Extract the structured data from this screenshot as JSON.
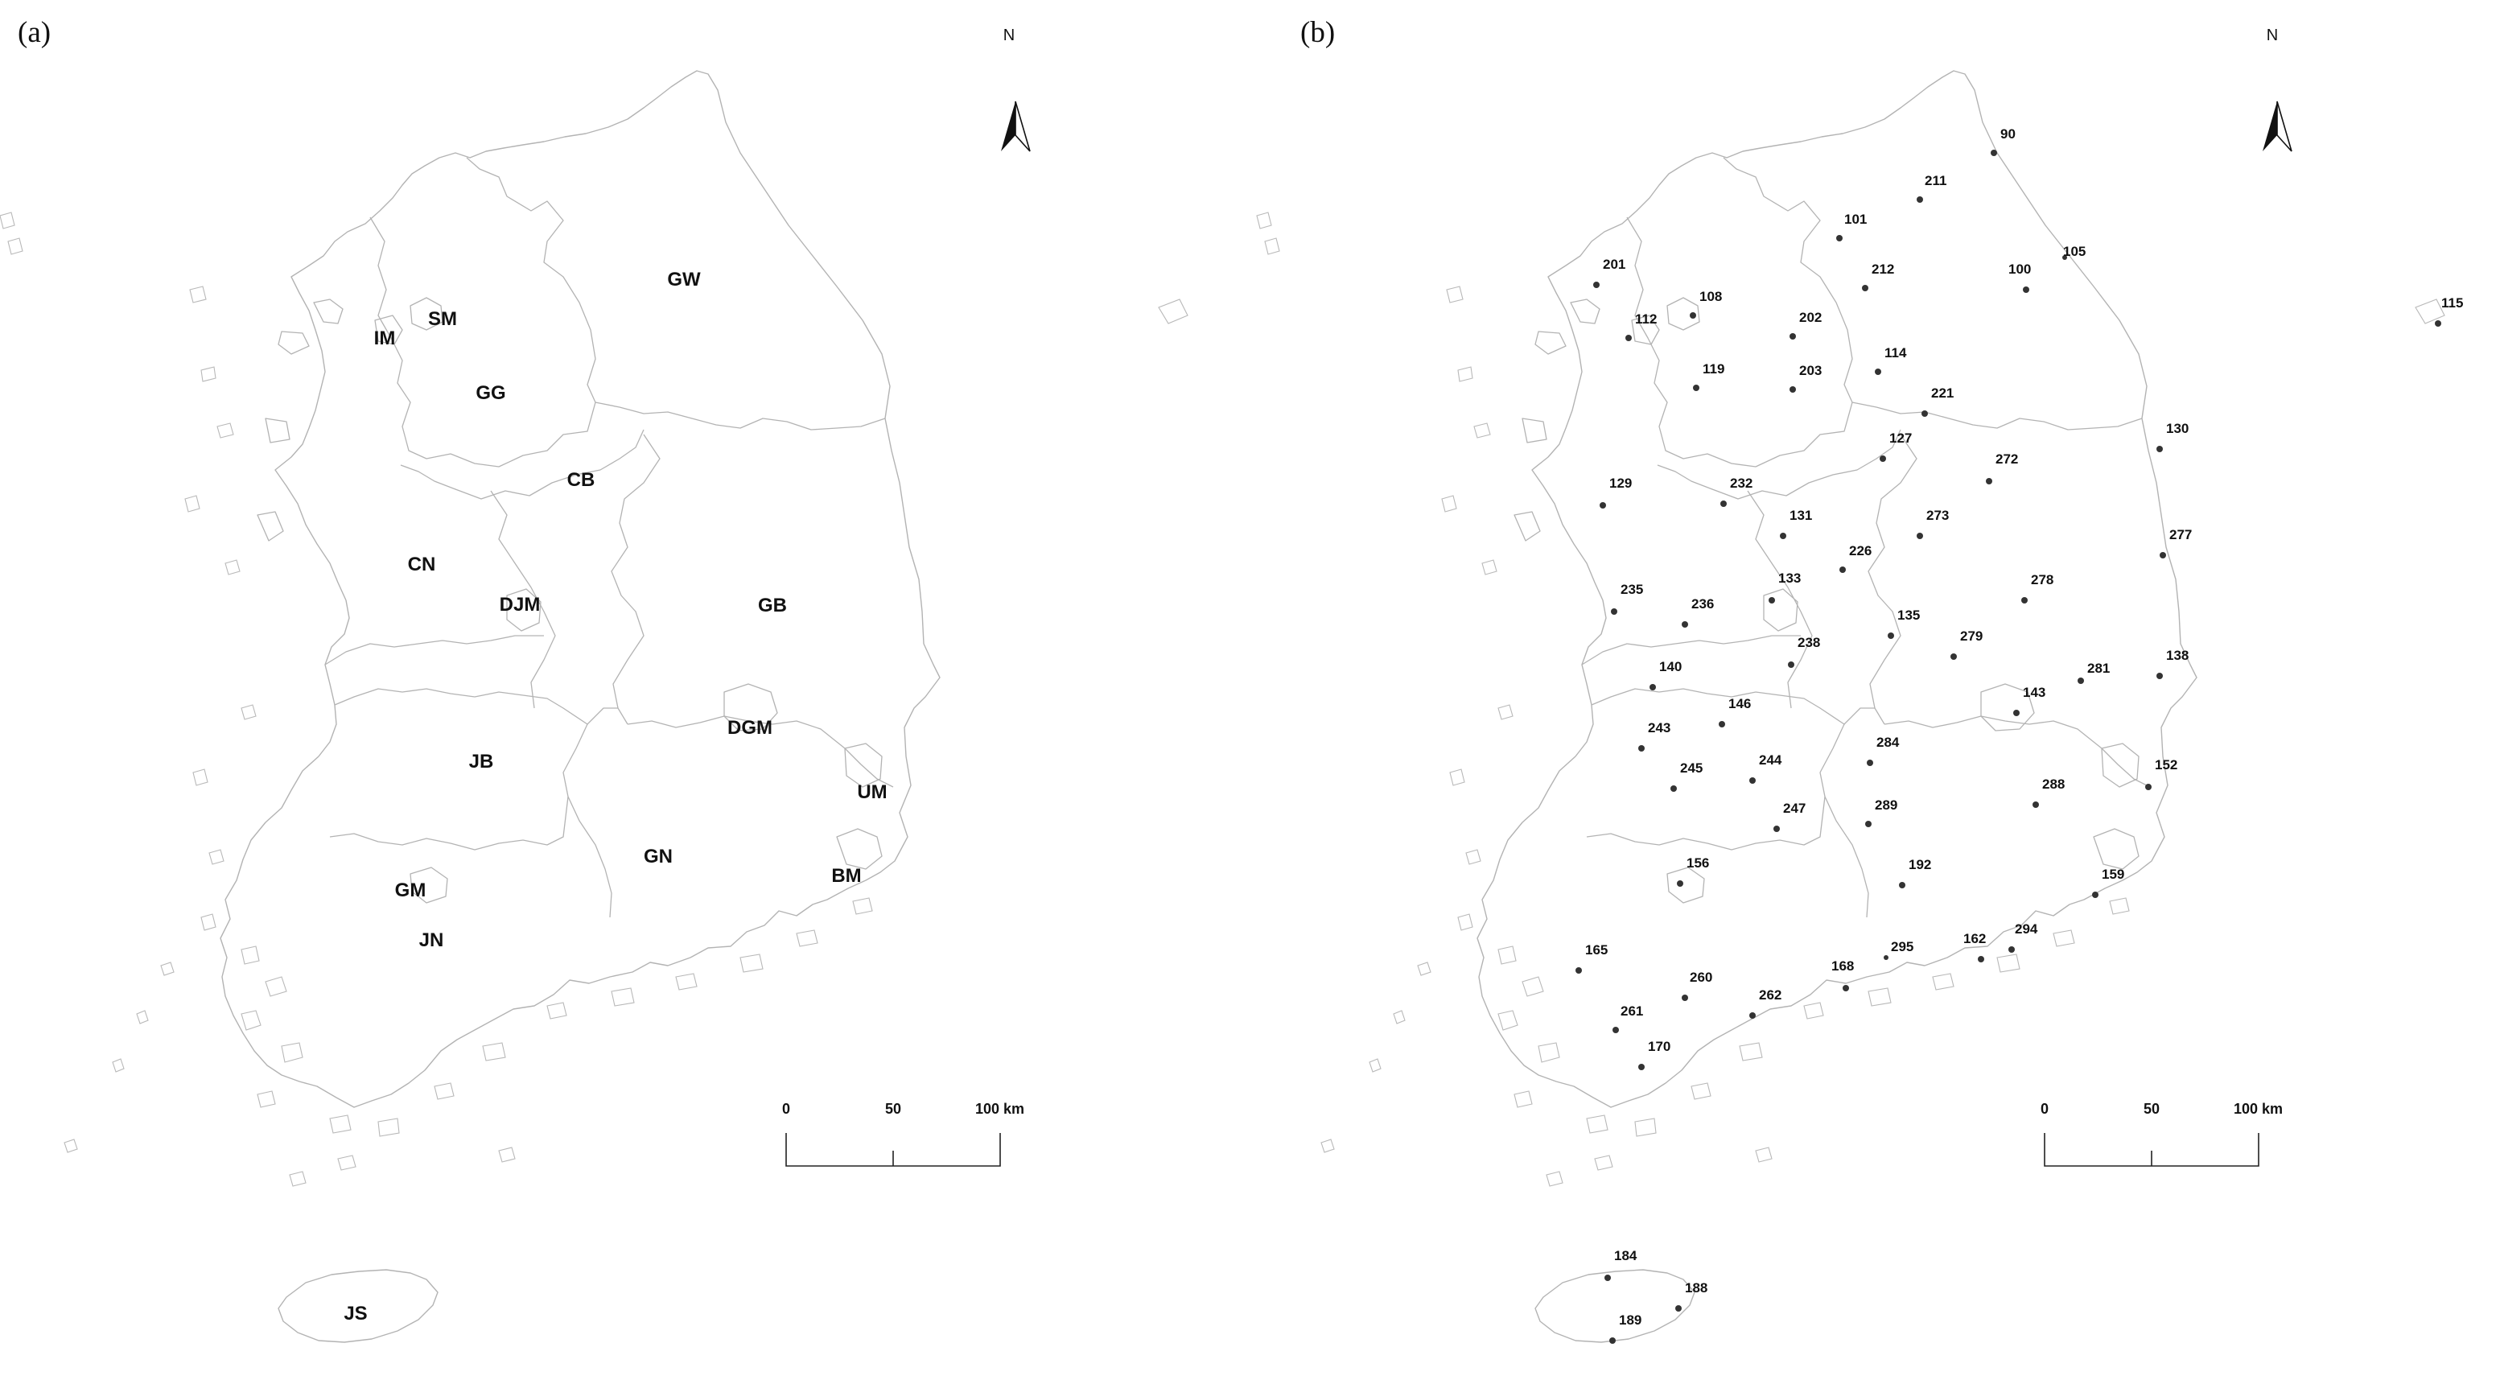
{
  "colors": {
    "outline": "#b3b3b3",
    "text": "#111111",
    "dot": "#333333",
    "background": "#ffffff"
  },
  "panels": [
    {
      "letter": "(a)",
      "north_label": "N",
      "scale_labels": [
        "0",
        "50",
        "100 km"
      ],
      "regions": [
        {
          "code": "GW"
        },
        {
          "code": "IM"
        },
        {
          "code": "SM"
        },
        {
          "code": "GG"
        },
        {
          "code": "CB"
        },
        {
          "code": "CN"
        },
        {
          "code": "DJM"
        },
        {
          "code": "GB"
        },
        {
          "code": "DGM"
        },
        {
          "code": "JB"
        },
        {
          "code": "UM"
        },
        {
          "code": "GN"
        },
        {
          "code": "BM"
        },
        {
          "code": "GM"
        },
        {
          "code": "JN"
        },
        {
          "code": "JS"
        }
      ]
    },
    {
      "letter": "(b)",
      "north_label": "N",
      "scale_labels": [
        "0",
        "50",
        "100 km"
      ],
      "stations": [
        {
          "id": "90"
        },
        {
          "id": "211"
        },
        {
          "id": "101"
        },
        {
          "id": "105"
        },
        {
          "id": "100"
        },
        {
          "id": "201"
        },
        {
          "id": "108"
        },
        {
          "id": "212"
        },
        {
          "id": "112"
        },
        {
          "id": "202"
        },
        {
          "id": "115"
        },
        {
          "id": "114"
        },
        {
          "id": "119"
        },
        {
          "id": "203"
        },
        {
          "id": "221"
        },
        {
          "id": "130"
        },
        {
          "id": "127"
        },
        {
          "id": "272"
        },
        {
          "id": "129"
        },
        {
          "id": "232"
        },
        {
          "id": "131"
        },
        {
          "id": "273"
        },
        {
          "id": "277"
        },
        {
          "id": "226"
        },
        {
          "id": "133"
        },
        {
          "id": "278"
        },
        {
          "id": "235"
        },
        {
          "id": "236"
        },
        {
          "id": "135"
        },
        {
          "id": "279"
        },
        {
          "id": "238"
        },
        {
          "id": "138"
        },
        {
          "id": "140"
        },
        {
          "id": "281"
        },
        {
          "id": "143"
        },
        {
          "id": "146"
        },
        {
          "id": "243"
        },
        {
          "id": "284"
        },
        {
          "id": "152"
        },
        {
          "id": "245"
        },
        {
          "id": "244"
        },
        {
          "id": "288"
        },
        {
          "id": "289"
        },
        {
          "id": "247"
        },
        {
          "id": "156"
        },
        {
          "id": "192"
        },
        {
          "id": "159"
        },
        {
          "id": "294"
        },
        {
          "id": "162"
        },
        {
          "id": "165"
        },
        {
          "id": "295"
        },
        {
          "id": "168"
        },
        {
          "id": "260"
        },
        {
          "id": "262"
        },
        {
          "id": "261"
        },
        {
          "id": "170"
        },
        {
          "id": "184"
        },
        {
          "id": "188"
        },
        {
          "id": "189"
        }
      ]
    }
  ]
}
